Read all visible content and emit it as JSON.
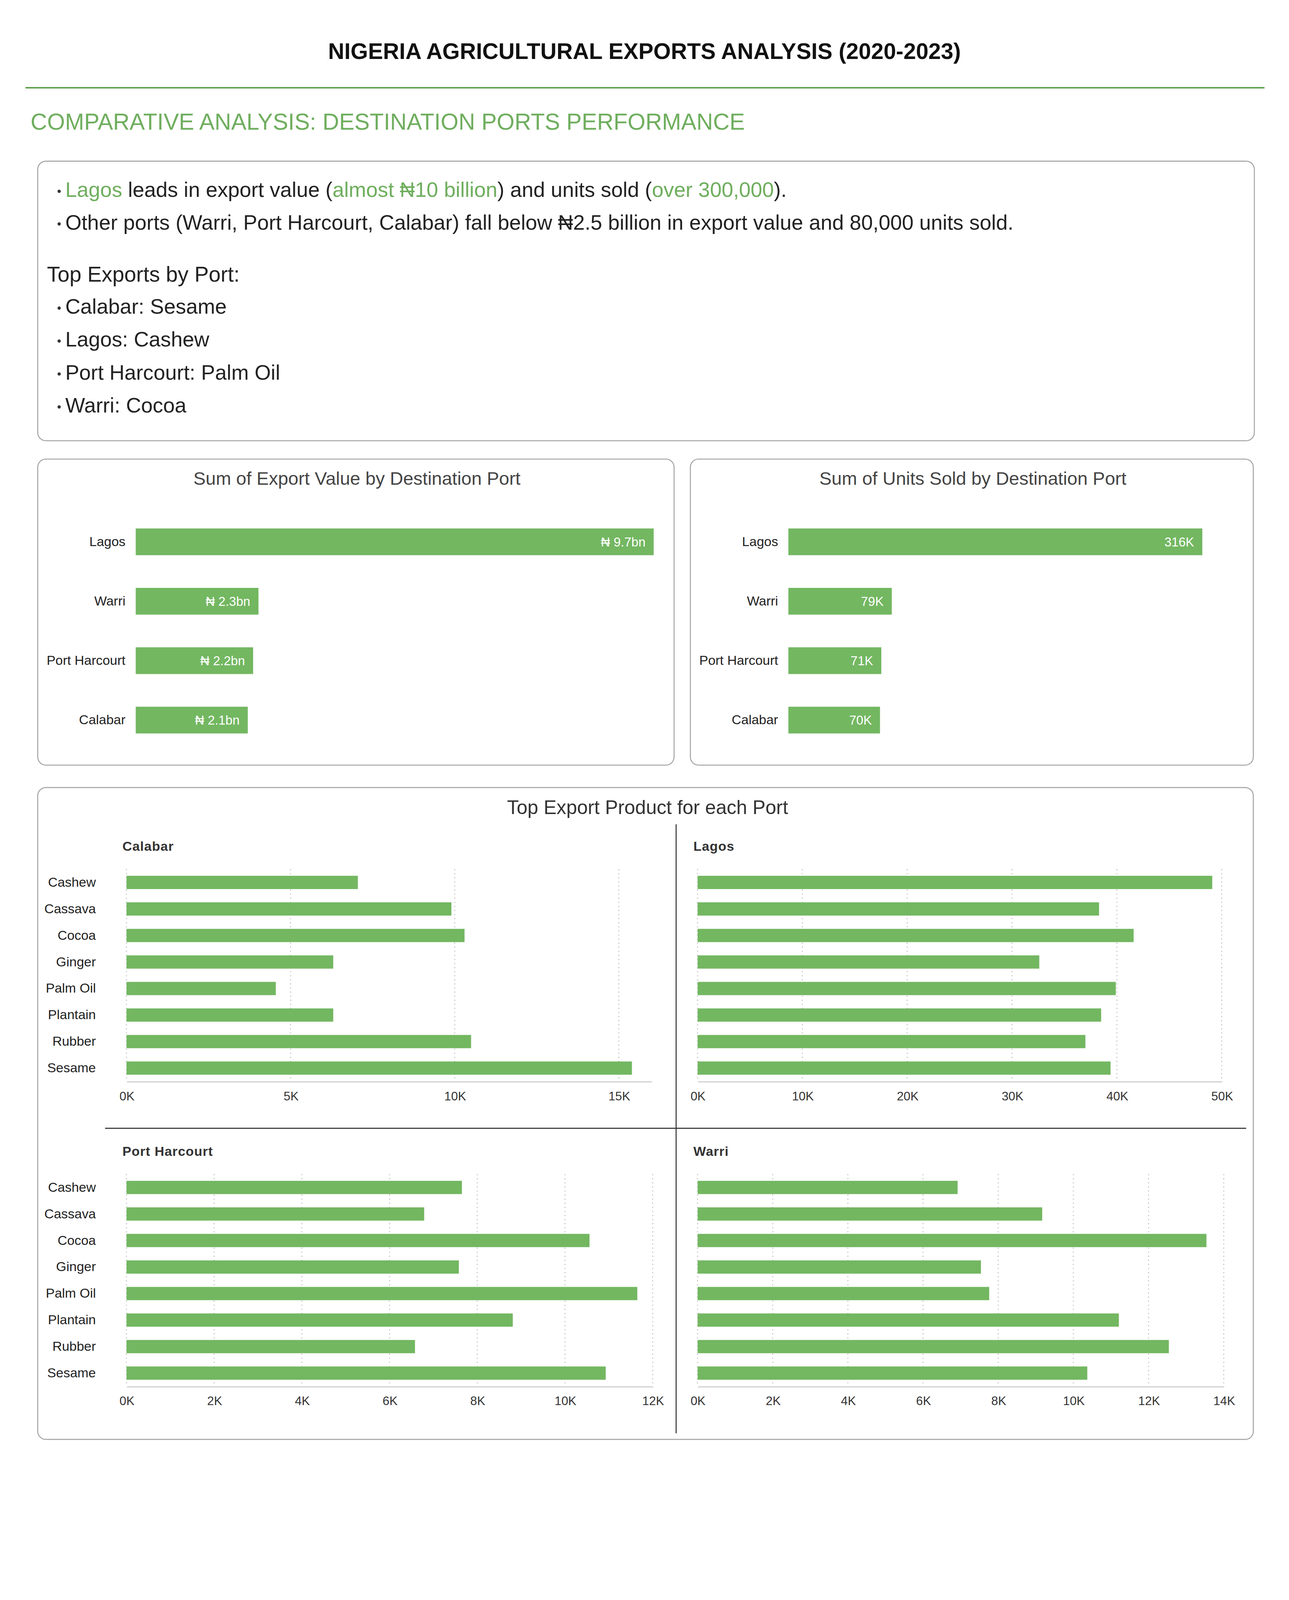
{
  "title": "NIGERIA AGRICULTURAL EXPORTS ANALYSIS (2020-2023)",
  "subtitle": "COMPARATIVE ANALYSIS: DESTINATION PORTS PERFORMANCE",
  "insights": {
    "bullets": [
      [
        {
          "text": "Lagos",
          "color": "#6fae5e"
        },
        {
          "text": " leads in export value ("
        },
        {
          "text": "almost ₦10 billion",
          "color": "#6fae5e"
        },
        {
          "text": ") and units sold ("
        },
        {
          "text": "over 300,000",
          "color": "#6fae5e"
        },
        {
          "text": ")."
        }
      ],
      [
        {
          "text": "Other ports (Warri, Port Harcourt, Calabar) fall below ₦2.5 billion in export value and 80,000 units sold."
        }
      ]
    ],
    "heading": "Top Exports by Port:",
    "items": [
      "Calabar: Sesame",
      "Lagos: Cashew",
      "Port Harcourt: Palm Oil",
      "Warri: Cocoa"
    ]
  },
  "products_title": "Top Export Product for each Port",
  "chart_data": [
    {
      "type": "bar",
      "orientation": "horizontal",
      "title": "Sum of Export Value by Destination Port",
      "categories": [
        "Lagos",
        "Warri",
        "Port Harcourt",
        "Calabar"
      ],
      "values": [
        9.7,
        2.3,
        2.2,
        2.1
      ],
      "value_labels": [
        "₦ 9.7bn",
        "₦ 2.3bn",
        "₦ 2.2bn",
        "₦ 2.1bn"
      ],
      "data_labels": true,
      "tick_labels": "y",
      "color": "#73b761"
    },
    {
      "type": "bar",
      "orientation": "horizontal",
      "title": "Sum of Units Sold by Destination Port",
      "categories": [
        "Lagos",
        "Warri",
        "Port Harcourt",
        "Calabar"
      ],
      "values": [
        316,
        79,
        71,
        70
      ],
      "value_labels": [
        "316K",
        "79K",
        "71K",
        "70K"
      ],
      "data_labels": true,
      "tick_labels": "y",
      "color": "#73b761"
    },
    {
      "type": "bar",
      "orientation": "horizontal",
      "title": "Calabar",
      "categories": [
        "Cashew",
        "Cassava",
        "Cocoa",
        "Ginger",
        "Palm Oil",
        "Plantain",
        "Rubber",
        "Sesame"
      ],
      "values": [
        7050,
        9900,
        10300,
        6300,
        4550,
        6300,
        10500,
        15400
      ],
      "xlim": [
        0,
        16000
      ],
      "xticks": [
        {
          "value": 0,
          "label": "0K"
        },
        {
          "value": 5000,
          "label": "5K"
        },
        {
          "value": 10000,
          "label": "10K"
        },
        {
          "value": 15000,
          "label": "15K"
        }
      ],
      "grid": true,
      "tick_labels": true,
      "color": "#73b761"
    },
    {
      "type": "bar",
      "orientation": "horizontal",
      "title": "Lagos",
      "categories": [
        "Cashew",
        "Cassava",
        "Cocoa",
        "Ginger",
        "Palm Oil",
        "Plantain",
        "Rubber",
        "Sesame"
      ],
      "values": [
        49100,
        38300,
        41600,
        32600,
        39900,
        38500,
        37000,
        39400
      ],
      "xlim": [
        0,
        50000
      ],
      "xticks": [
        {
          "value": 0,
          "label": "0K"
        },
        {
          "value": 10000,
          "label": "10K"
        },
        {
          "value": 20000,
          "label": "20K"
        },
        {
          "value": 30000,
          "label": "30K"
        },
        {
          "value": 40000,
          "label": "40K"
        },
        {
          "value": 50000,
          "label": "50K"
        }
      ],
      "grid": true,
      "tick_labels": "x",
      "color": "#73b761"
    },
    {
      "type": "bar",
      "orientation": "horizontal",
      "title": "Port Harcourt",
      "categories": [
        "Cashew",
        "Cassava",
        "Cocoa",
        "Ginger",
        "Palm Oil",
        "Plantain",
        "Rubber",
        "Sesame"
      ],
      "values": [
        7650,
        6790,
        10560,
        7580,
        11650,
        8810,
        6580,
        10930
      ],
      "xlim": [
        0,
        12000
      ],
      "xticks": [
        {
          "value": 0,
          "label": "0K"
        },
        {
          "value": 2000,
          "label": "2K"
        },
        {
          "value": 4000,
          "label": "4K"
        },
        {
          "value": 6000,
          "label": "6K"
        },
        {
          "value": 8000,
          "label": "8K"
        },
        {
          "value": 10000,
          "label": "10K"
        },
        {
          "value": 12000,
          "label": "12K"
        }
      ],
      "grid": true,
      "tick_labels": true,
      "color": "#73b761"
    },
    {
      "type": "bar",
      "orientation": "horizontal",
      "title": "Warri",
      "categories": [
        "Cashew",
        "Cassava",
        "Cocoa",
        "Ginger",
        "Palm Oil",
        "Plantain",
        "Rubber",
        "Sesame"
      ],
      "values": [
        6920,
        9170,
        13540,
        7540,
        7760,
        11210,
        12540,
        10370
      ],
      "xlim": [
        0,
        14000
      ],
      "xticks": [
        {
          "value": 0,
          "label": "0K"
        },
        {
          "value": 2000,
          "label": "2K"
        },
        {
          "value": 4000,
          "label": "4K"
        },
        {
          "value": 6000,
          "label": "6K"
        },
        {
          "value": 8000,
          "label": "8K"
        },
        {
          "value": 10000,
          "label": "10K"
        },
        {
          "value": 12000,
          "label": "12K"
        },
        {
          "value": 14000,
          "label": "14K"
        }
      ],
      "grid": true,
      "tick_labels": "x",
      "color": "#73b761"
    }
  ]
}
